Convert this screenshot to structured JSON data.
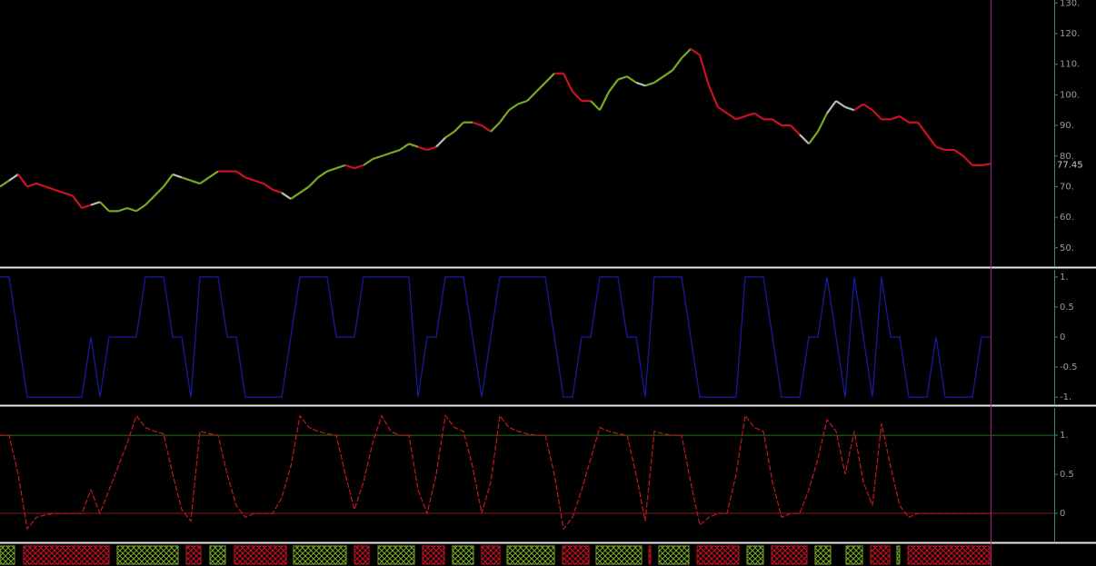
{
  "chart_data": [
    {
      "type": "price",
      "xlim": [
        0,
        116
      ],
      "ylim": [
        44,
        131
      ],
      "yticks": [
        {
          "value": 50,
          "label": "50."
        },
        {
          "value": 60,
          "label": "60."
        },
        {
          "value": 70,
          "label": "70."
        },
        {
          "value": 80,
          "label": "80."
        },
        {
          "value": 90,
          "label": "90."
        },
        {
          "value": 100,
          "label": "100."
        },
        {
          "value": 110,
          "label": "110."
        },
        {
          "value": 120,
          "label": "120."
        },
        {
          "value": 130,
          "label": "130."
        }
      ],
      "last_label": "77.45",
      "x": [
        0,
        1,
        2,
        3,
        4,
        5,
        6,
        7,
        8,
        9,
        10,
        11,
        12,
        13,
        14,
        15,
        16,
        17,
        18,
        19,
        20,
        21,
        22,
        23,
        24,
        25,
        26,
        27,
        28,
        29,
        30,
        31,
        32,
        33,
        34,
        35,
        36,
        37,
        38,
        39,
        40,
        41,
        42,
        43,
        44,
        45,
        46,
        47,
        48,
        49,
        50,
        51,
        52,
        53,
        54,
        55,
        56,
        57,
        58,
        59,
        60,
        61,
        62,
        63,
        64,
        65,
        66,
        67,
        68,
        69,
        70,
        71,
        72,
        73,
        74,
        75,
        76,
        77,
        78,
        79,
        80,
        81,
        82,
        83,
        84,
        85,
        86,
        87,
        88,
        89,
        90,
        91,
        92,
        93,
        94,
        95,
        96,
        97,
        98,
        99,
        100,
        101,
        102,
        103,
        104,
        105,
        106,
        107,
        108,
        109
      ],
      "values": [
        70,
        72,
        74,
        70,
        71,
        70,
        69,
        68,
        67,
        63,
        64,
        65,
        62,
        62,
        63,
        62,
        64,
        67,
        70,
        74,
        73,
        72,
        71,
        73,
        75,
        75,
        75,
        73,
        72,
        71,
        69,
        68,
        66,
        68,
        70,
        73,
        75,
        76,
        77,
        76,
        77,
        79,
        80,
        81,
        82,
        84,
        83,
        82,
        83,
        86,
        88,
        91,
        91,
        90,
        88,
        91,
        95,
        97,
        98,
        101,
        104,
        107,
        107,
        101,
        98,
        98,
        95,
        101,
        105,
        106,
        104,
        103,
        104,
        106,
        108,
        112,
        115,
        113,
        103,
        96,
        94,
        92,
        93,
        94,
        92,
        92,
        90,
        90,
        87,
        84,
        88,
        94,
        98,
        96,
        95,
        97,
        95,
        92,
        92,
        93,
        91,
        91,
        87,
        83,
        82,
        82,
        80,
        77,
        77,
        77.45
      ],
      "colors": [
        "#7a2",
        "#7a2",
        "#bbb",
        "#c12",
        "#c12",
        "#c12",
        "#c12",
        "#c12",
        "#c12",
        "#c12",
        "#c12",
        "#bbb",
        "#7a2",
        "#7a2",
        "#7a2",
        "#7a2",
        "#7a2",
        "#7a2",
        "#7a2",
        "#7a2",
        "#bbb",
        "#7a2",
        "#7a2",
        "#7a2",
        "#7a2",
        "#c12",
        "#c12",
        "#c12",
        "#c12",
        "#c12",
        "#c12",
        "#c12",
        "#bbb",
        "#7a2",
        "#7a2",
        "#7a2",
        "#7a2",
        "#7a2",
        "#7a2",
        "#c12",
        "#c12",
        "#7a2",
        "#7a2",
        "#7a2",
        "#7a2",
        "#7a2",
        "#7a2",
        "#c12",
        "#c12",
        "#bbb",
        "#7a2",
        "#7a2",
        "#7a2",
        "#c12",
        "#c12",
        "#7a2",
        "#7a2",
        "#7a2",
        "#7a2",
        "#7a2",
        "#7a2",
        "#7a2",
        "#c12",
        "#c12",
        "#c12",
        "#c12",
        "#7a2",
        "#7a2",
        "#7a2",
        "#7a2",
        "#7a2",
        "#bbb",
        "#7a2",
        "#7a2",
        "#7a2",
        "#7a2",
        "#7a2",
        "#c12",
        "#c12",
        "#c12",
        "#c12",
        "#c12",
        "#c12",
        "#c12",
        "#c12",
        "#c12",
        "#c12",
        "#c12",
        "#c12",
        "#bbb",
        "#7a2",
        "#7a2",
        "#bbb",
        "#bbb",
        "#bbb",
        "#c12",
        "#c12",
        "#c12",
        "#c12",
        "#c12",
        "#c12",
        "#c12",
        "#c12",
        "#c12",
        "#c12",
        "#c12",
        "#c12",
        "#c12",
        "#c12",
        "#c12"
      ]
    },
    {
      "type": "line",
      "color": "#1a1aa8",
      "xlim": [
        0,
        116
      ],
      "ylim": [
        -1.12,
        1.12
      ],
      "yticks": [
        {
          "value": -1,
          "label": "-1."
        },
        -0.5,
        0,
        0.5,
        {
          "value": 1,
          "label": "1."
        }
      ],
      "x": [
        0,
        1,
        2,
        3,
        4,
        5,
        6,
        7,
        8,
        9,
        10,
        11,
        12,
        13,
        14,
        15,
        16,
        17,
        18,
        19,
        20,
        21,
        22,
        23,
        24,
        25,
        26,
        27,
        28,
        29,
        30,
        31,
        32,
        33,
        34,
        35,
        36,
        37,
        38,
        39,
        40,
        41,
        42,
        43,
        44,
        45,
        46,
        47,
        48,
        49,
        50,
        51,
        52,
        53,
        54,
        55,
        56,
        57,
        58,
        59,
        60,
        61,
        62,
        63,
        64,
        65,
        66,
        67,
        68,
        69,
        70,
        71,
        72,
        73,
        74,
        75,
        76,
        77,
        78,
        79,
        80,
        81,
        82,
        83,
        84,
        85,
        86,
        87,
        88,
        89,
        90,
        91,
        92,
        93,
        94,
        95,
        96,
        97,
        98,
        99,
        100,
        101,
        102,
        103,
        104,
        105,
        106,
        107,
        108,
        109
      ],
      "values": [
        1,
        1,
        0,
        -1,
        -1,
        -1,
        -1,
        -1,
        -1,
        -1,
        0,
        -1,
        0,
        0,
        0,
        0,
        1,
        1,
        1,
        0,
        0,
        -1,
        1,
        1,
        1,
        0,
        0,
        -1,
        -1,
        -1,
        -1,
        -1,
        0,
        1,
        1,
        1,
        1,
        0,
        0,
        0,
        1,
        1,
        1,
        1,
        1,
        1,
        -1,
        0,
        0,
        1,
        1,
        1,
        0,
        -1,
        0,
        1,
        1,
        1,
        1,
        1,
        1,
        0,
        -1,
        -1,
        0,
        0,
        1,
        1,
        1,
        0,
        0,
        -1,
        1,
        1,
        1,
        1,
        0,
        -1,
        -1,
        -1,
        -1,
        -1,
        1,
        1,
        1,
        0,
        -1,
        -1,
        -1,
        0,
        0,
        1,
        0,
        -1,
        1,
        0,
        -1,
        1,
        0,
        0,
        -1,
        -1,
        -1,
        0,
        -1,
        -1,
        -1,
        -1,
        0,
        0
      ]
    },
    {
      "type": "line",
      "color": "#c0181c",
      "xlim": [
        0,
        116
      ],
      "ylim": [
        -0.36,
        1.35
      ],
      "yticks": [
        0,
        0.5,
        {
          "value": 1,
          "label": "1."
        }
      ],
      "ref_lines": [
        {
          "value": 1,
          "color": "#2e6b1e"
        },
        {
          "value": 0,
          "color": "#8b1a1a"
        }
      ],
      "x": [
        0,
        1,
        2,
        3,
        4,
        5,
        6,
        7,
        8,
        9,
        10,
        11,
        12,
        13,
        14,
        15,
        16,
        17,
        18,
        19,
        20,
        21,
        22,
        23,
        24,
        25,
        26,
        27,
        28,
        29,
        30,
        31,
        32,
        33,
        34,
        35,
        36,
        37,
        38,
        39,
        40,
        41,
        42,
        43,
        44,
        45,
        46,
        47,
        48,
        49,
        50,
        51,
        52,
        53,
        54,
        55,
        56,
        57,
        58,
        59,
        60,
        61,
        62,
        63,
        64,
        65,
        66,
        67,
        68,
        69,
        70,
        71,
        72,
        73,
        74,
        75,
        76,
        77,
        78,
        79,
        80,
        81,
        82,
        83,
        84,
        85,
        86,
        87,
        88,
        89,
        90,
        91,
        92,
        93,
        94,
        95,
        96,
        97,
        98,
        99,
        100,
        101,
        102,
        103,
        104,
        105,
        106,
        107,
        108,
        109
      ],
      "values": [
        1,
        1,
        0.5,
        -0.2,
        -0.05,
        -0.02,
        0,
        0,
        0,
        0,
        0.3,
        0,
        0.3,
        0.6,
        0.9,
        1.25,
        1.1,
        1.05,
        1.02,
        0.5,
        0.05,
        -0.1,
        1.05,
        1.02,
        1,
        0.5,
        0.1,
        -0.05,
        0,
        0,
        0,
        0.2,
        0.6,
        1.25,
        1.1,
        1.05,
        1.02,
        1,
        0.5,
        0.05,
        0.4,
        0.9,
        1.25,
        1.05,
        1,
        1,
        0.3,
        0,
        0.5,
        1.25,
        1.1,
        1.05,
        0.6,
        0,
        0.4,
        1.25,
        1.1,
        1.05,
        1.02,
        1,
        1,
        0.5,
        -0.2,
        -0.05,
        0.3,
        0.7,
        1.1,
        1.05,
        1.02,
        1,
        0.5,
        -0.1,
        1.05,
        1.02,
        1,
        1,
        0.4,
        -0.15,
        -0.05,
        0,
        0,
        0.5,
        1.25,
        1.1,
        1.05,
        0.4,
        -0.05,
        0,
        0,
        0.3,
        0.7,
        1.2,
        1.05,
        0.5,
        1.05,
        0.4,
        0.1,
        1.15,
        0.6,
        0.1,
        -0.05,
        0,
        0,
        0,
        0,
        0,
        0,
        0,
        0,
        0
      ]
    },
    {
      "type": "regime",
      "xlim": [
        0,
        116
      ],
      "starts": [
        0,
        2.6,
        12.9,
        20.5,
        23.1,
        25.8,
        32.3,
        39,
        41.6,
        46.5,
        49.8,
        53,
        55.8,
        61.9,
        65.6,
        71.4,
        72.5,
        76.7,
        82.2,
        84.9,
        89.7,
        93.1,
        95.8,
        98.7,
        99.9
      ],
      "ends": [
        1.6,
        12,
        19.6,
        22.1,
        24.8,
        31.5,
        38.1,
        40.6,
        45.6,
        48.9,
        52.1,
        55,
        61,
        64.8,
        70.6,
        71.6,
        75.8,
        81.3,
        84,
        88.8,
        91.4,
        94.9,
        97.9,
        99,
        108.9
      ],
      "colors": [
        "#7a2",
        "#c12",
        "#7a2",
        "#c12",
        "#7a2",
        "#c12",
        "#7a2",
        "#c12",
        "#7a2",
        "#c12",
        "#7a2",
        "#c12",
        "#7a2",
        "#c12",
        "#7a2",
        "#c12",
        "#7a2",
        "#c12",
        "#7a2",
        "#c12",
        "#7a2",
        "#7a2",
        "#c12",
        "#7a2",
        "#c12"
      ]
    }
  ]
}
